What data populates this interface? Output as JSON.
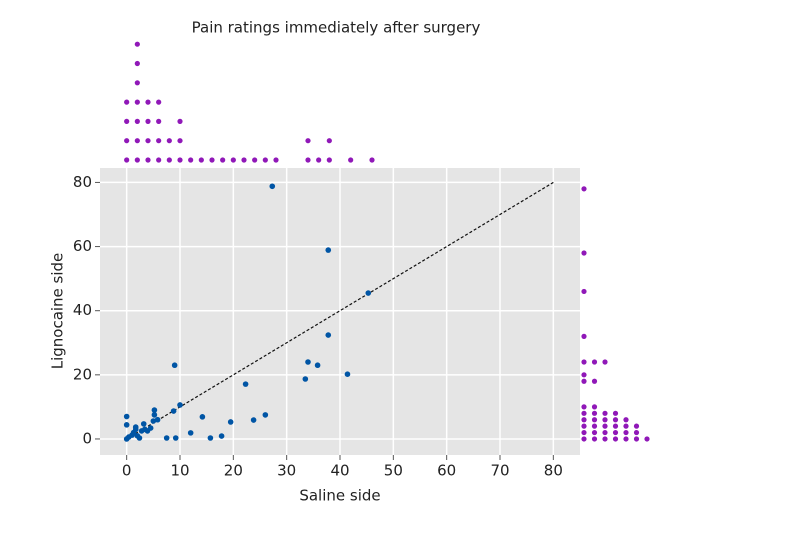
{
  "chart_data": {
    "type": "scatter",
    "title": "Pain ratings immediately after surgery",
    "x_label": "Saline side",
    "y_label": "Lignocaine side",
    "xlim": [
      -5,
      85
    ],
    "ylim": [
      -5,
      84.5
    ],
    "xticks": [
      0,
      10,
      20,
      30,
      40,
      50,
      60,
      70,
      80
    ],
    "yticks": [
      0,
      20,
      40,
      60,
      80
    ],
    "grid": true,
    "color": "#0055a5",
    "marginal_color": "#9018b8",
    "diagonal": {
      "x": [
        0,
        80
      ],
      "y": [
        0,
        80
      ]
    },
    "x": [
      0,
      0,
      0,
      0.4,
      1,
      1.3,
      1.7,
      2,
      1.7,
      2.4,
      2.8,
      3.2,
      3.4,
      3.9,
      4.5,
      5,
      5.2,
      5.2,
      5.8,
      7.5,
      8.8,
      9,
      9.2,
      10,
      12,
      14.2,
      15.7,
      17.8,
      19.5,
      22.3,
      23.8,
      26,
      27.3,
      33.5,
      34,
      35.8,
      37.8,
      37.8,
      41.4,
      45.3
    ],
    "values": [
      0,
      4.4,
      7,
      0.6,
      1.2,
      2,
      3,
      1,
      3.7,
      0.3,
      2.5,
      4.7,
      3,
      2.5,
      3.4,
      5.6,
      7.5,
      9,
      6,
      0.3,
      8.7,
      23,
      0.3,
      10.6,
      1.9,
      6.9,
      0.3,
      0.9,
      5.3,
      17.1,
      5.9,
      7.5,
      78.8,
      18.7,
      24,
      23,
      58.9,
      32.4,
      20.2,
      45.5
    ]
  }
}
